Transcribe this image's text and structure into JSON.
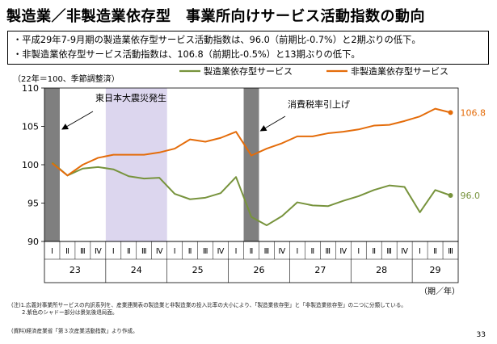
{
  "title": "製造業／非製造業依存型　事業所向けサービス活動指数の動向",
  "summary": [
    "・平成29年7-9月期の製造業依存型サービス活動指数は、96.0（前期比-0.7%）と2期ぶりの低下。",
    "・非製造業依存型サービス活動指数は、106.8（前期比-0.5%）と13期ぶりの低下。"
  ],
  "footnotes": [
    "(注)1.広義対事業所サービスの内訳系列を、産業連関表の製造業と非製造業の投入比率の大小により、「製造業依存型」と「非製造業依存型」の二つに分類している。",
    "　　2.紫色のシャドー部分は景気後退局面。"
  ],
  "source": "(資料)経済産業省「第３次産業活動指数」より作成。",
  "page_number": "33",
  "chart_data": {
    "type": "line",
    "unit_note": "（22年＝100、季節調整済）",
    "period_note": "（期／年）",
    "ylim": [
      90,
      110
    ],
    "yticks": [
      90,
      95,
      100,
      105,
      110
    ],
    "quarter_labels": [
      "Ⅰ",
      "Ⅱ",
      "Ⅲ",
      "Ⅳ",
      "Ⅰ",
      "Ⅱ",
      "Ⅲ",
      "Ⅳ",
      "Ⅰ",
      "Ⅱ",
      "Ⅲ",
      "Ⅳ",
      "Ⅰ",
      "Ⅱ",
      "Ⅲ",
      "Ⅳ",
      "Ⅰ",
      "Ⅱ",
      "Ⅲ",
      "Ⅳ",
      "Ⅰ",
      "Ⅱ",
      "Ⅲ",
      "Ⅳ",
      "Ⅰ",
      "Ⅱ",
      "Ⅲ"
    ],
    "years": [
      {
        "label": "23",
        "start": 0,
        "count": 4
      },
      {
        "label": "24",
        "start": 4,
        "count": 4
      },
      {
        "label": "25",
        "start": 8,
        "count": 4
      },
      {
        "label": "26",
        "start": 12,
        "count": 4
      },
      {
        "label": "27",
        "start": 16,
        "count": 4
      },
      {
        "label": "28",
        "start": 20,
        "count": 4
      },
      {
        "label": "29",
        "start": 24,
        "count": 3
      }
    ],
    "series": [
      {
        "name": "製造業依存型サービス",
        "color": "#77933c",
        "values": [
          100.3,
          98.6,
          99.5,
          99.7,
          99.4,
          98.5,
          98.2,
          98.3,
          96.2,
          95.5,
          95.7,
          96.3,
          98.4,
          93.2,
          92.1,
          93.3,
          95.1,
          94.7,
          94.6,
          95.3,
          95.9,
          96.7,
          97.3,
          97.1,
          93.8,
          96.7,
          96.0
        ],
        "end_label": "96.0"
      },
      {
        "name": "非製造業依存型サービス",
        "color": "#e46c0a",
        "values": [
          100.2,
          98.6,
          100.0,
          100.9,
          101.3,
          101.3,
          101.3,
          101.6,
          102.1,
          103.3,
          103.0,
          103.5,
          104.3,
          101.2,
          102.1,
          102.8,
          103.7,
          103.7,
          104.1,
          104.3,
          104.6,
          105.1,
          105.2,
          105.7,
          106.3,
          107.3,
          106.8
        ],
        "end_label": "106.8"
      }
    ],
    "shadings": [
      {
        "type": "recession",
        "color": "#dcd6ee",
        "start": 4,
        "end": 7
      },
      {
        "type": "event",
        "color": "#7f7f7f",
        "start": 0,
        "end": 0
      },
      {
        "type": "event",
        "color": "#7f7f7f",
        "start": 13,
        "end": 13
      }
    ],
    "annotations": [
      {
        "text": "東日本大震災発生",
        "target": 0
      },
      {
        "text": "消費税率引上げ",
        "target": 13
      }
    ]
  }
}
